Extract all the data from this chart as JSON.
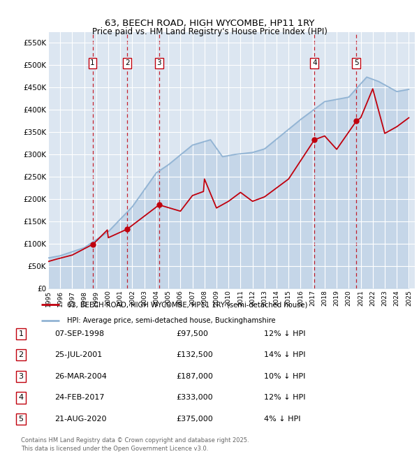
{
  "title": "63, BEECH ROAD, HIGH WYCOMBE, HP11 1RY",
  "subtitle": "Price paid vs. HM Land Registry's House Price Index (HPI)",
  "ylim": [
    0,
    575000
  ],
  "yticks": [
    0,
    50000,
    100000,
    150000,
    200000,
    250000,
    300000,
    350000,
    400000,
    450000,
    500000,
    550000
  ],
  "ytick_labels": [
    "£0",
    "£50K",
    "£100K",
    "£150K",
    "£200K",
    "£250K",
    "£300K",
    "£350K",
    "£400K",
    "£450K",
    "£500K",
    "£550K"
  ],
  "background_color": "#ffffff",
  "plot_bg_color": "#dce6f1",
  "grid_color": "#ffffff",
  "red_line_color": "#c0000d",
  "blue_line_color": "#92b4d4",
  "transactions": [
    {
      "num": 1,
      "date_str": "07-SEP-1998",
      "date_x": 1998.69,
      "price": 97500,
      "pct": "12%",
      "label": "1"
    },
    {
      "num": 2,
      "date_str": "25-JUL-2001",
      "date_x": 2001.57,
      "price": 132500,
      "pct": "14%",
      "label": "2"
    },
    {
      "num": 3,
      "date_str": "26-MAR-2004",
      "date_x": 2004.23,
      "price": 187000,
      "pct": "10%",
      "label": "3"
    },
    {
      "num": 4,
      "date_str": "24-FEB-2017",
      "date_x": 2017.15,
      "price": 333000,
      "pct": "12%",
      "label": "4"
    },
    {
      "num": 5,
      "date_str": "21-AUG-2020",
      "date_x": 2020.64,
      "price": 375000,
      "pct": "4%",
      "label": "5"
    }
  ],
  "legend_line1": "63, BEECH ROAD, HIGH WYCOMBE, HP11 1RY (semi-detached house)",
  "legend_line2": "HPI: Average price, semi-detached house, Buckinghamshire",
  "footer": "Contains HM Land Registry data © Crown copyright and database right 2025.\nThis data is licensed under the Open Government Licence v3.0.",
  "xlim_start": 1995.0,
  "xlim_end": 2025.5,
  "xticks": [
    1995,
    1996,
    1997,
    1998,
    1999,
    2000,
    2001,
    2002,
    2003,
    2004,
    2005,
    2006,
    2007,
    2008,
    2009,
    2010,
    2011,
    2012,
    2013,
    2014,
    2015,
    2016,
    2017,
    2018,
    2019,
    2020,
    2021,
    2022,
    2023,
    2024,
    2025
  ],
  "hpi_years": [
    1995.0,
    1995.08,
    1995.17,
    1995.25,
    1995.33,
    1995.42,
    1995.5,
    1995.58,
    1995.67,
    1995.75,
    1995.83,
    1995.92,
    1996.0,
    1996.08,
    1996.17,
    1996.25,
    1996.33,
    1996.42,
    1996.5,
    1996.58,
    1996.67,
    1996.75,
    1996.83,
    1996.92,
    1997.0,
    1997.08,
    1997.17,
    1997.25,
    1997.33,
    1997.42,
    1997.5,
    1997.58,
    1997.67,
    1997.75,
    1997.83,
    1997.92,
    1998.0,
    1998.08,
    1998.17,
    1998.25,
    1998.33,
    1998.42,
    1998.5,
    1998.58,
    1998.67,
    1998.75,
    1998.83,
    1998.92,
    1999.0,
    1999.08,
    1999.17,
    1999.25,
    1999.33,
    1999.42,
    1999.5,
    1999.58,
    1999.67,
    1999.75,
    1999.83,
    1999.92,
    2000.0,
    2000.08,
    2000.17,
    2000.25,
    2000.33,
    2000.42,
    2000.5,
    2000.58,
    2000.67,
    2000.75,
    2000.83,
    2000.92,
    2001.0,
    2001.08,
    2001.17,
    2001.25,
    2001.33,
    2001.42,
    2001.5,
    2001.58,
    2001.67,
    2001.75,
    2001.83,
    2001.92,
    2002.0,
    2002.08,
    2002.17,
    2002.25,
    2002.33,
    2002.42,
    2002.5,
    2002.58,
    2002.67,
    2002.75,
    2002.83,
    2002.92,
    2003.0,
    2003.08,
    2003.17,
    2003.25,
    2003.33,
    2003.42,
    2003.5,
    2003.58,
    2003.67,
    2003.75,
    2003.83,
    2003.92,
    2004.0,
    2004.08,
    2004.17,
    2004.25,
    2004.33,
    2004.42,
    2004.5,
    2004.58,
    2004.67,
    2004.75,
    2004.83,
    2004.92,
    2005.0,
    2005.08,
    2005.17,
    2005.25,
    2005.33,
    2005.42,
    2005.5,
    2005.58,
    2005.67,
    2005.75,
    2005.83,
    2005.92,
    2006.0,
    2006.08,
    2006.17,
    2006.25,
    2006.33,
    2006.42,
    2006.5,
    2006.58,
    2006.67,
    2006.75,
    2006.83,
    2006.92,
    2007.0,
    2007.08,
    2007.17,
    2007.25,
    2007.33,
    2007.42,
    2007.5,
    2007.58,
    2007.67,
    2007.75,
    2007.83,
    2007.92,
    2008.0,
    2008.08,
    2008.17,
    2008.25,
    2008.33,
    2008.42,
    2008.5,
    2008.58,
    2008.67,
    2008.75,
    2008.83,
    2008.92,
    2009.0,
    2009.08,
    2009.17,
    2009.25,
    2009.33,
    2009.42,
    2009.5,
    2009.58,
    2009.67,
    2009.75,
    2009.83,
    2009.92,
    2010.0,
    2010.08,
    2010.17,
    2010.25,
    2010.33,
    2010.42,
    2010.5,
    2010.58,
    2010.67,
    2010.75,
    2010.83,
    2010.92,
    2011.0,
    2011.08,
    2011.17,
    2011.25,
    2011.33,
    2011.42,
    2011.5,
    2011.58,
    2011.67,
    2011.75,
    2011.83,
    2011.92,
    2012.0,
    2012.08,
    2012.17,
    2012.25,
    2012.33,
    2012.42,
    2012.5,
    2012.58,
    2012.67,
    2012.75,
    2012.83,
    2012.92,
    2013.0,
    2013.08,
    2013.17,
    2013.25,
    2013.33,
    2013.42,
    2013.5,
    2013.58,
    2013.67,
    2013.75,
    2013.83,
    2013.92,
    2014.0,
    2014.08,
    2014.17,
    2014.25,
    2014.33,
    2014.42,
    2014.5,
    2014.58,
    2014.67,
    2014.75,
    2014.83,
    2014.92,
    2015.0,
    2015.08,
    2015.17,
    2015.25,
    2015.33,
    2015.42,
    2015.5,
    2015.58,
    2015.67,
    2015.75,
    2015.83,
    2015.92,
    2016.0,
    2016.08,
    2016.17,
    2016.25,
    2016.33,
    2016.42,
    2016.5,
    2016.58,
    2016.67,
    2016.75,
    2016.83,
    2016.92,
    2017.0,
    2017.08,
    2017.17,
    2017.25,
    2017.33,
    2017.42,
    2017.5,
    2017.58,
    2017.67,
    2017.75,
    2017.83,
    2017.92,
    2018.0,
    2018.08,
    2018.17,
    2018.25,
    2018.33,
    2018.42,
    2018.5,
    2018.58,
    2018.67,
    2018.75,
    2018.83,
    2018.92,
    2019.0,
    2019.08,
    2019.17,
    2019.25,
    2019.33,
    2019.42,
    2019.5,
    2019.58,
    2019.67,
    2019.75,
    2019.83,
    2019.92,
    2020.0,
    2020.08,
    2020.17,
    2020.25,
    2020.33,
    2020.42,
    2020.5,
    2020.58,
    2020.67,
    2020.75,
    2020.83,
    2020.92,
    2021.0,
    2021.08,
    2021.17,
    2021.25,
    2021.33,
    2021.42,
    2021.5,
    2021.58,
    2021.67,
    2021.75,
    2021.83,
    2021.92,
    2022.0,
    2022.08,
    2022.17,
    2022.25,
    2022.33,
    2022.42,
    2022.5,
    2022.58,
    2022.67,
    2022.75,
    2022.83,
    2022.92,
    2023.0,
    2023.08,
    2023.17,
    2023.25,
    2023.33,
    2023.42,
    2023.5,
    2023.58,
    2023.67,
    2023.75,
    2023.83,
    2023.92,
    2024.0,
    2024.08,
    2024.17,
    2024.25,
    2024.33,
    2024.42,
    2024.5,
    2024.58,
    2024.67,
    2024.75,
    2024.83,
    2024.92,
    2025.0
  ],
  "pp_points": [
    [
      1998.69,
      97500
    ],
    [
      2001.57,
      132500
    ],
    [
      2004.23,
      187000
    ],
    [
      2017.15,
      333000
    ],
    [
      2020.64,
      375000
    ]
  ]
}
